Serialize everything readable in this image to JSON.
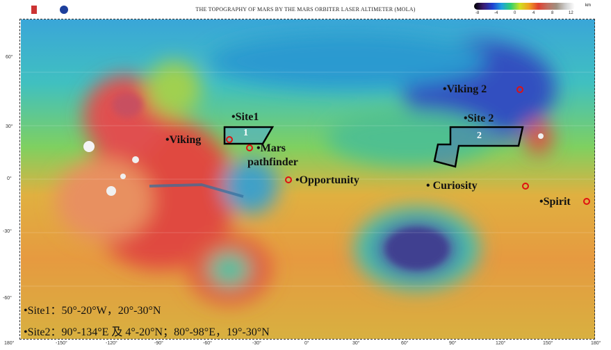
{
  "title": "THE TOPOGRAPHY OF MARS BY THE MARS ORBITER LASER ALTIMETER (MOLA)",
  "scale": {
    "unit": "km",
    "ticks": [
      "-8",
      "-4",
      "0",
      "4",
      "8",
      "12"
    ]
  },
  "axes": {
    "lon": [
      "180°",
      "-150°",
      "-120°",
      "-90°",
      "-60°",
      "-30°",
      "0°",
      "30°",
      "60°",
      "90°",
      "120°",
      "150°",
      "180°"
    ],
    "lat": [
      "60°",
      "30°",
      "0°",
      "-30°",
      "-60°"
    ]
  },
  "labels": {
    "site1": "•Site1",
    "site2": "•Site 2",
    "viking": "•Viking",
    "viking2": "•Viking 2",
    "pathfinder1": "•Mars",
    "pathfinder2": "pathfinder",
    "opportunity": "•Opportunity",
    "curiosity": "•   Curiosity",
    "spirit": "•Spirit",
    "box1": "1",
    "box2": "2"
  },
  "notes": {
    "site1": "•Site1：50°-20°W，20°-30°N",
    "site2": "•Site2：90°-134°E 及 4°-20°N；80°-98°E，19°-30°N"
  },
  "colors": {
    "marker": "#e01010",
    "box": "#000000"
  }
}
